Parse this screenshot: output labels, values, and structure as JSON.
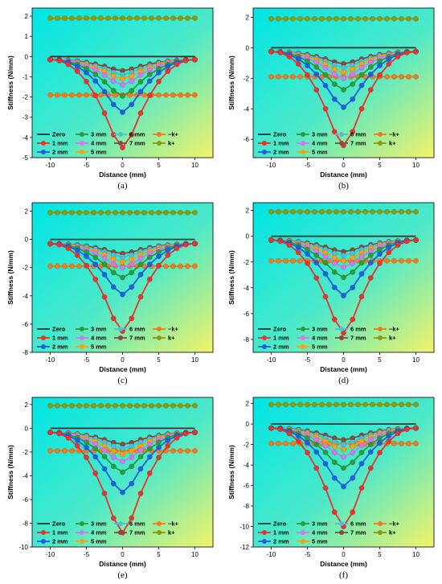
{
  "chart_data": [
    {
      "type": "line",
      "panel_label": "(a)",
      "xlabel": "Distance (mm)",
      "ylabel": "Stiffness (N/mm)",
      "xlim": [
        -12.5,
        12.5
      ],
      "ylim": [
        -5,
        2.4
      ],
      "xticks": [
        -10,
        -5,
        0,
        5,
        10
      ],
      "yticks": [
        -5,
        -4,
        -3,
        -2,
        -1,
        0,
        1,
        2
      ],
      "x": [
        -10,
        -8.75,
        -7.5,
        -6.25,
        -5,
        -3.75,
        -2.5,
        -1.25,
        0,
        1.25,
        2.5,
        3.75,
        5,
        6.25,
        7.5,
        8.75,
        10
      ],
      "kplus": 1.9,
      "minus_kplus": -1.9,
      "zero": 0,
      "gap_depths": {
        "1 mm": 4.5,
        "2 mm": 2.75,
        "3 mm": 1.95,
        "4 mm": 1.4,
        "5 mm": 1.1,
        "6 mm": 0.9,
        "7 mm": 0.7
      },
      "edge_depth": 0.15
    },
    {
      "type": "line",
      "panel_label": "(b)",
      "xlabel": "Distance (mm)",
      "ylabel": "Stiffness (N/mm)",
      "xlim": [
        -12.5,
        12.5
      ],
      "ylim": [
        -7.2,
        2.6
      ],
      "xticks": [
        -10,
        -5,
        0,
        5,
        10
      ],
      "yticks": [
        -6,
        -4,
        -2,
        0,
        2
      ],
      "x": [
        -10,
        -8.75,
        -7.5,
        -6.25,
        -5,
        -3.75,
        -2.5,
        -1.25,
        0,
        1.25,
        2.5,
        3.75,
        5,
        6.25,
        7.5,
        8.75,
        10
      ],
      "kplus": 1.9,
      "minus_kplus": -1.9,
      "zero": 0,
      "gap_depths": {
        "1 mm": 6.4,
        "2 mm": 3.9,
        "3 mm": 2.75,
        "4 mm": 2.0,
        "5 mm": 1.6,
        "6 mm": 1.3,
        "7 mm": 1.05
      },
      "edge_depth": 0.25
    },
    {
      "type": "line",
      "panel_label": "(c)",
      "xlabel": "Distance (mm)",
      "ylabel": "Stiffness (N/mm)",
      "xlim": [
        -12.5,
        12.5
      ],
      "ylim": [
        -8,
        2.6
      ],
      "xticks": [
        -10,
        -5,
        0,
        5,
        10
      ],
      "yticks": [
        -8,
        -6,
        -4,
        -2,
        0,
        2
      ],
      "x": [
        -10,
        -8.75,
        -7.5,
        -6.25,
        -5,
        -3.75,
        -2.5,
        -1.25,
        0,
        1.25,
        2.5,
        3.75,
        5,
        6.25,
        7.5,
        8.75,
        10
      ],
      "kplus": 1.9,
      "minus_kplus": -1.9,
      "zero": 0,
      "gap_depths": {
        "1 mm": 6.5,
        "2 mm": 3.9,
        "3 mm": 2.7,
        "4 mm": 2.0,
        "5 mm": 1.6,
        "6 mm": 1.25,
        "7 mm": 1.0
      },
      "edge_depth": 0.3
    },
    {
      "type": "line",
      "panel_label": "(d)",
      "xlabel": "Distance (mm)",
      "ylabel": "Stiffness (N/mm)",
      "xlim": [
        -12.5,
        12.5
      ],
      "ylim": [
        -9,
        2.6
      ],
      "xticks": [
        -10,
        -5,
        0,
        5,
        10
      ],
      "yticks": [
        -8,
        -6,
        -4,
        -2,
        0,
        2
      ],
      "x": [
        -10,
        -8.75,
        -7.5,
        -6.25,
        -5,
        -3.75,
        -2.5,
        -1.25,
        0,
        1.25,
        2.5,
        3.75,
        5,
        6.25,
        7.5,
        8.75,
        10
      ],
      "kplus": 1.9,
      "minus_kplus": -1.9,
      "zero": 0,
      "gap_depths": {
        "1 mm": 7.5,
        "2 mm": 4.6,
        "3 mm": 3.2,
        "4 mm": 2.4,
        "5 mm": 1.9,
        "6 mm": 1.5,
        "7 mm": 1.2
      },
      "edge_depth": 0.3
    },
    {
      "type": "line",
      "panel_label": "(e)",
      "xlabel": "Distance (mm)",
      "ylabel": "Stiffness (N/mm)",
      "xlim": [
        -12.5,
        12.5
      ],
      "ylim": [
        -10,
        2.6
      ],
      "xticks": [
        -10,
        -5,
        0,
        5,
        10
      ],
      "yticks": [
        -10,
        -8,
        -6,
        -4,
        -2,
        0,
        2
      ],
      "x": [
        -10,
        -8.75,
        -7.5,
        -6.25,
        -5,
        -3.75,
        -2.5,
        -1.25,
        0,
        1.25,
        2.5,
        3.75,
        5,
        6.25,
        7.5,
        8.75,
        10
      ],
      "kplus": 1.9,
      "minus_kplus": -1.9,
      "zero": 0,
      "gap_depths": {
        "1 mm": 8.8,
        "2 mm": 5.4,
        "3 mm": 3.7,
        "4 mm": 2.8,
        "5 mm": 2.2,
        "6 mm": 1.7,
        "7 mm": 1.35
      },
      "edge_depth": 0.35
    },
    {
      "type": "line",
      "panel_label": "(f)",
      "xlabel": "Distance (mm)",
      "ylabel": "Stiffness (N/mm)",
      "xlim": [
        -12.5,
        12.5
      ],
      "ylim": [
        -12,
        2.6
      ],
      "xticks": [
        -10,
        -5,
        0,
        5,
        10
      ],
      "yticks": [
        -12,
        -10,
        -8,
        -6,
        -4,
        -2,
        0,
        2
      ],
      "x": [
        -10,
        -8.75,
        -7.5,
        -6.25,
        -5,
        -3.75,
        -2.5,
        -1.25,
        0,
        1.25,
        2.5,
        3.75,
        5,
        6.25,
        7.5,
        8.75,
        10
      ],
      "kplus": 1.9,
      "minus_kplus": -1.9,
      "zero": 0,
      "gap_depths": {
        "1 mm": 10,
        "2 mm": 6.1,
        "3 mm": 4.3,
        "4 mm": 3.2,
        "5 mm": 2.5,
        "6 mm": 2.0,
        "7 mm": 1.55
      },
      "edge_depth": 0.4
    }
  ],
  "legend": {
    "entries": [
      {
        "label": "Zero",
        "color": "#333333",
        "marker": false
      },
      {
        "label": "3 mm",
        "color": "#2e9a3c",
        "marker": true
      },
      {
        "label": "6 mm",
        "color": "#4cbfd6",
        "marker": true
      },
      {
        "label": "−k+",
        "color": "#f07a1e",
        "marker": true
      },
      {
        "label": "1 mm",
        "color": "#e8342c",
        "marker": true
      },
      {
        "label": "4 mm",
        "color": "#d07ae8",
        "marker": true
      },
      {
        "label": "7 mm",
        "color": "#8a4a3a",
        "marker": true
      },
      {
        "label": "k+",
        "color": "#8c9a12",
        "marker": true
      },
      {
        "label": "2 mm",
        "color": "#1f5fe0",
        "marker": true
      },
      {
        "label": "5 mm",
        "color": "#f3a21a",
        "marker": true
      }
    ]
  },
  "colors": {
    "bg_cyan": "#00e5e5",
    "bg_yellow": "#f3f36a"
  }
}
